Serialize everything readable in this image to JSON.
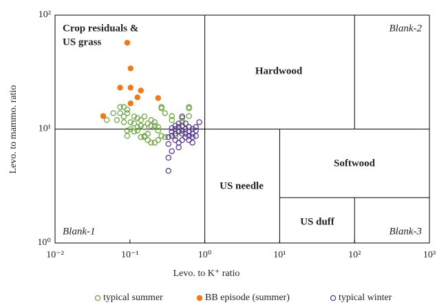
{
  "chart_data": {
    "type": "scatter",
    "xlabel": "Levo. to K⁺ ratio",
    "ylabel": "Levo. to mammo. ratio",
    "xscale": "log",
    "yscale": "log",
    "xlim": [
      0.01,
      1000
    ],
    "ylim": [
      1,
      100
    ],
    "xticks": [
      {
        "value": 0.01,
        "label": "10⁻²"
      },
      {
        "value": 0.1,
        "label": "10⁻¹"
      },
      {
        "value": 1,
        "label": "10⁰"
      },
      {
        "value": 10,
        "label": "10¹"
      },
      {
        "value": 100,
        "label": "10²"
      },
      {
        "value": 1000,
        "label": "10³"
      }
    ],
    "yticks": [
      {
        "value": 1,
        "label": "10⁰"
      },
      {
        "value": 10,
        "label": "10¹"
      },
      {
        "value": 100,
        "label": "10²"
      }
    ],
    "dividers": [
      {
        "x": [
          1,
          1
        ],
        "y": [
          1,
          100
        ]
      },
      {
        "x": [
          0.01,
          1000
        ],
        "y": [
          10,
          10
        ]
      },
      {
        "x": [
          100,
          100
        ],
        "y": [
          10,
          100
        ]
      },
      {
        "x": [
          10,
          10
        ],
        "y": [
          1,
          10
        ]
      },
      {
        "x": [
          10,
          1000
        ],
        "y": [
          2.5,
          2.5
        ]
      },
      {
        "x": [
          100,
          100
        ],
        "y": [
          1,
          2.5
        ]
      }
    ],
    "annotations": [
      {
        "text": "Crop residuals &",
        "color": "#a01e22"
      },
      {
        "text": "US grass",
        "color": "#a01e22"
      },
      {
        "text": "Hardwood",
        "color": "#3e3a6a"
      },
      {
        "text": "Blank-2",
        "color": "#222222"
      },
      {
        "text": "Softwood",
        "color": "#2a79b0"
      },
      {
        "text": "US needle",
        "color": "#d9b81c"
      },
      {
        "text": "US duff",
        "color": "#ea5f3a"
      },
      {
        "text": "Blank-1",
        "color": "#222222"
      },
      {
        "text": "Blank-3",
        "color": "#222222"
      }
    ],
    "legend": "bottom",
    "series": [
      {
        "name": "typical summer",
        "color": "#6ea544",
        "filled": false,
        "x": [
          0.049,
          0.06,
          0.074,
          0.083,
          0.092,
          0.074,
          0.092,
          0.083,
          0.067,
          0.083,
          0.102,
          0.114,
          0.126,
          0.14,
          0.156,
          0.102,
          0.092,
          0.114,
          0.126,
          0.14,
          0.156,
          0.173,
          0.214,
          0.214,
          0.238,
          0.238,
          0.192,
          0.173,
          0.192,
          0.14,
          0.156,
          0.114,
          0.126,
          0.264,
          0.264,
          0.294,
          0.615,
          0.615,
          0.615,
          0.498,
          0.498,
          0.363,
          0.363,
          0.448,
          0.403,
          0.327,
          0.294,
          0.264,
          0.238,
          0.214,
          0.173,
          0.192,
          0.156,
          0.092
        ],
        "y": [
          12.0,
          13.8,
          13.8,
          15.6,
          14.8,
          15.6,
          13.8,
          12.9,
          12.0,
          11.5,
          11.5,
          11.2,
          10.4,
          10.7,
          10.4,
          10.0,
          9.7,
          9.5,
          9.7,
          8.5,
          8.7,
          9.1,
          11.5,
          10.7,
          10.4,
          9.7,
          12.0,
          11.2,
          10.7,
          12.0,
          12.9,
          12.9,
          12.5,
          15.6,
          15.2,
          13.8,
          15.6,
          15.2,
          13.0,
          12.5,
          11.5,
          12.0,
          13.0,
          9.7,
          8.7,
          8.5,
          8.5,
          8.7,
          8.0,
          7.6,
          8.0,
          7.6,
          8.5,
          8.7
        ]
      },
      {
        "name": "BB episode (summer)",
        "color": "#ee7a1e",
        "filled": true,
        "x": [
          0.092,
          0.102,
          0.074,
          0.102,
          0.14,
          0.126,
          0.238,
          0.102,
          0.044
        ],
        "y": [
          57.2,
          34.1,
          23.1,
          23.1,
          21.8,
          19.0,
          18.7,
          16.8,
          13.0
        ]
      },
      {
        "name": "typical winter",
        "color": "#5b3b8c",
        "filled": false,
        "x": [
          0.327,
          0.363,
          0.403,
          0.448,
          0.498,
          0.553,
          0.615,
          0.684,
          0.76,
          0.845,
          0.76,
          0.684,
          0.615,
          0.553,
          0.498,
          0.448,
          0.403,
          0.363,
          0.403,
          0.448,
          0.498,
          0.553,
          0.615,
          0.684,
          0.684,
          0.615,
          0.553,
          0.498,
          0.448,
          0.403,
          0.363,
          0.327,
          0.363,
          0.448,
          0.327,
          0.327,
          0.76,
          0.498
        ],
        "y": [
          8.5,
          8.7,
          9.1,
          9.5,
          9.7,
          10.0,
          10.4,
          10.0,
          10.4,
          11.5,
          9.7,
          9.1,
          8.7,
          8.5,
          8.0,
          7.6,
          8.0,
          9.5,
          10.0,
          10.4,
          10.7,
          11.2,
          9.5,
          8.5,
          7.6,
          8.0,
          9.1,
          9.1,
          11.2,
          10.7,
          10.2,
          7.4,
          6.4,
          6.9,
          5.6,
          4.3,
          8.7,
          12.9
        ]
      }
    ]
  }
}
